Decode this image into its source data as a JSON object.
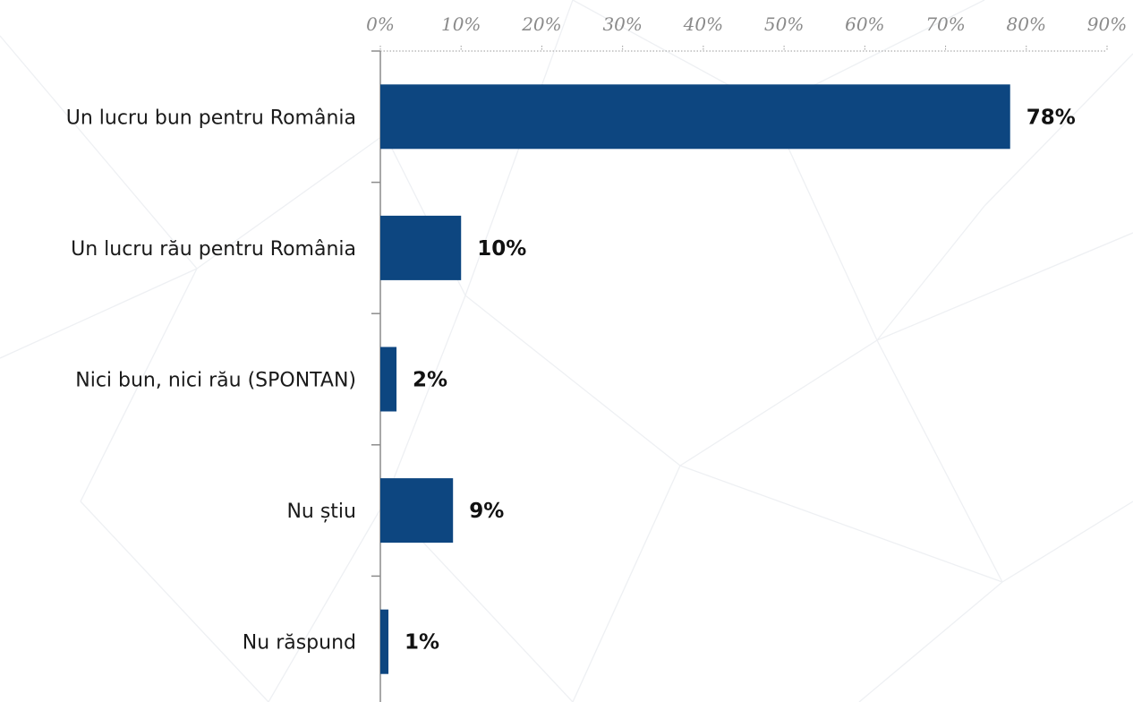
{
  "chart_data": {
    "type": "bar",
    "orientation": "horizontal",
    "categories": [
      "Un lucru bun pentru România",
      "Un lucru rău pentru România",
      "Nici bun, nici rău (SPONTAN)",
      "Nu știu",
      "Nu răspund"
    ],
    "values": [
      78,
      10,
      2,
      9,
      1
    ],
    "value_labels": [
      "78%",
      "10%",
      "2%",
      "9%",
      "1%"
    ],
    "xlim": [
      0,
      90
    ],
    "x_ticks": [
      0,
      10,
      20,
      30,
      40,
      50,
      60,
      70,
      80,
      90
    ],
    "x_tick_labels": [
      "0%",
      "10%",
      "20%",
      "30%",
      "40%",
      "50%",
      "60%",
      "70%",
      "80%",
      "90%"
    ],
    "x_axis_position": "top",
    "grid": false,
    "bar_color": "#0d4680"
  }
}
